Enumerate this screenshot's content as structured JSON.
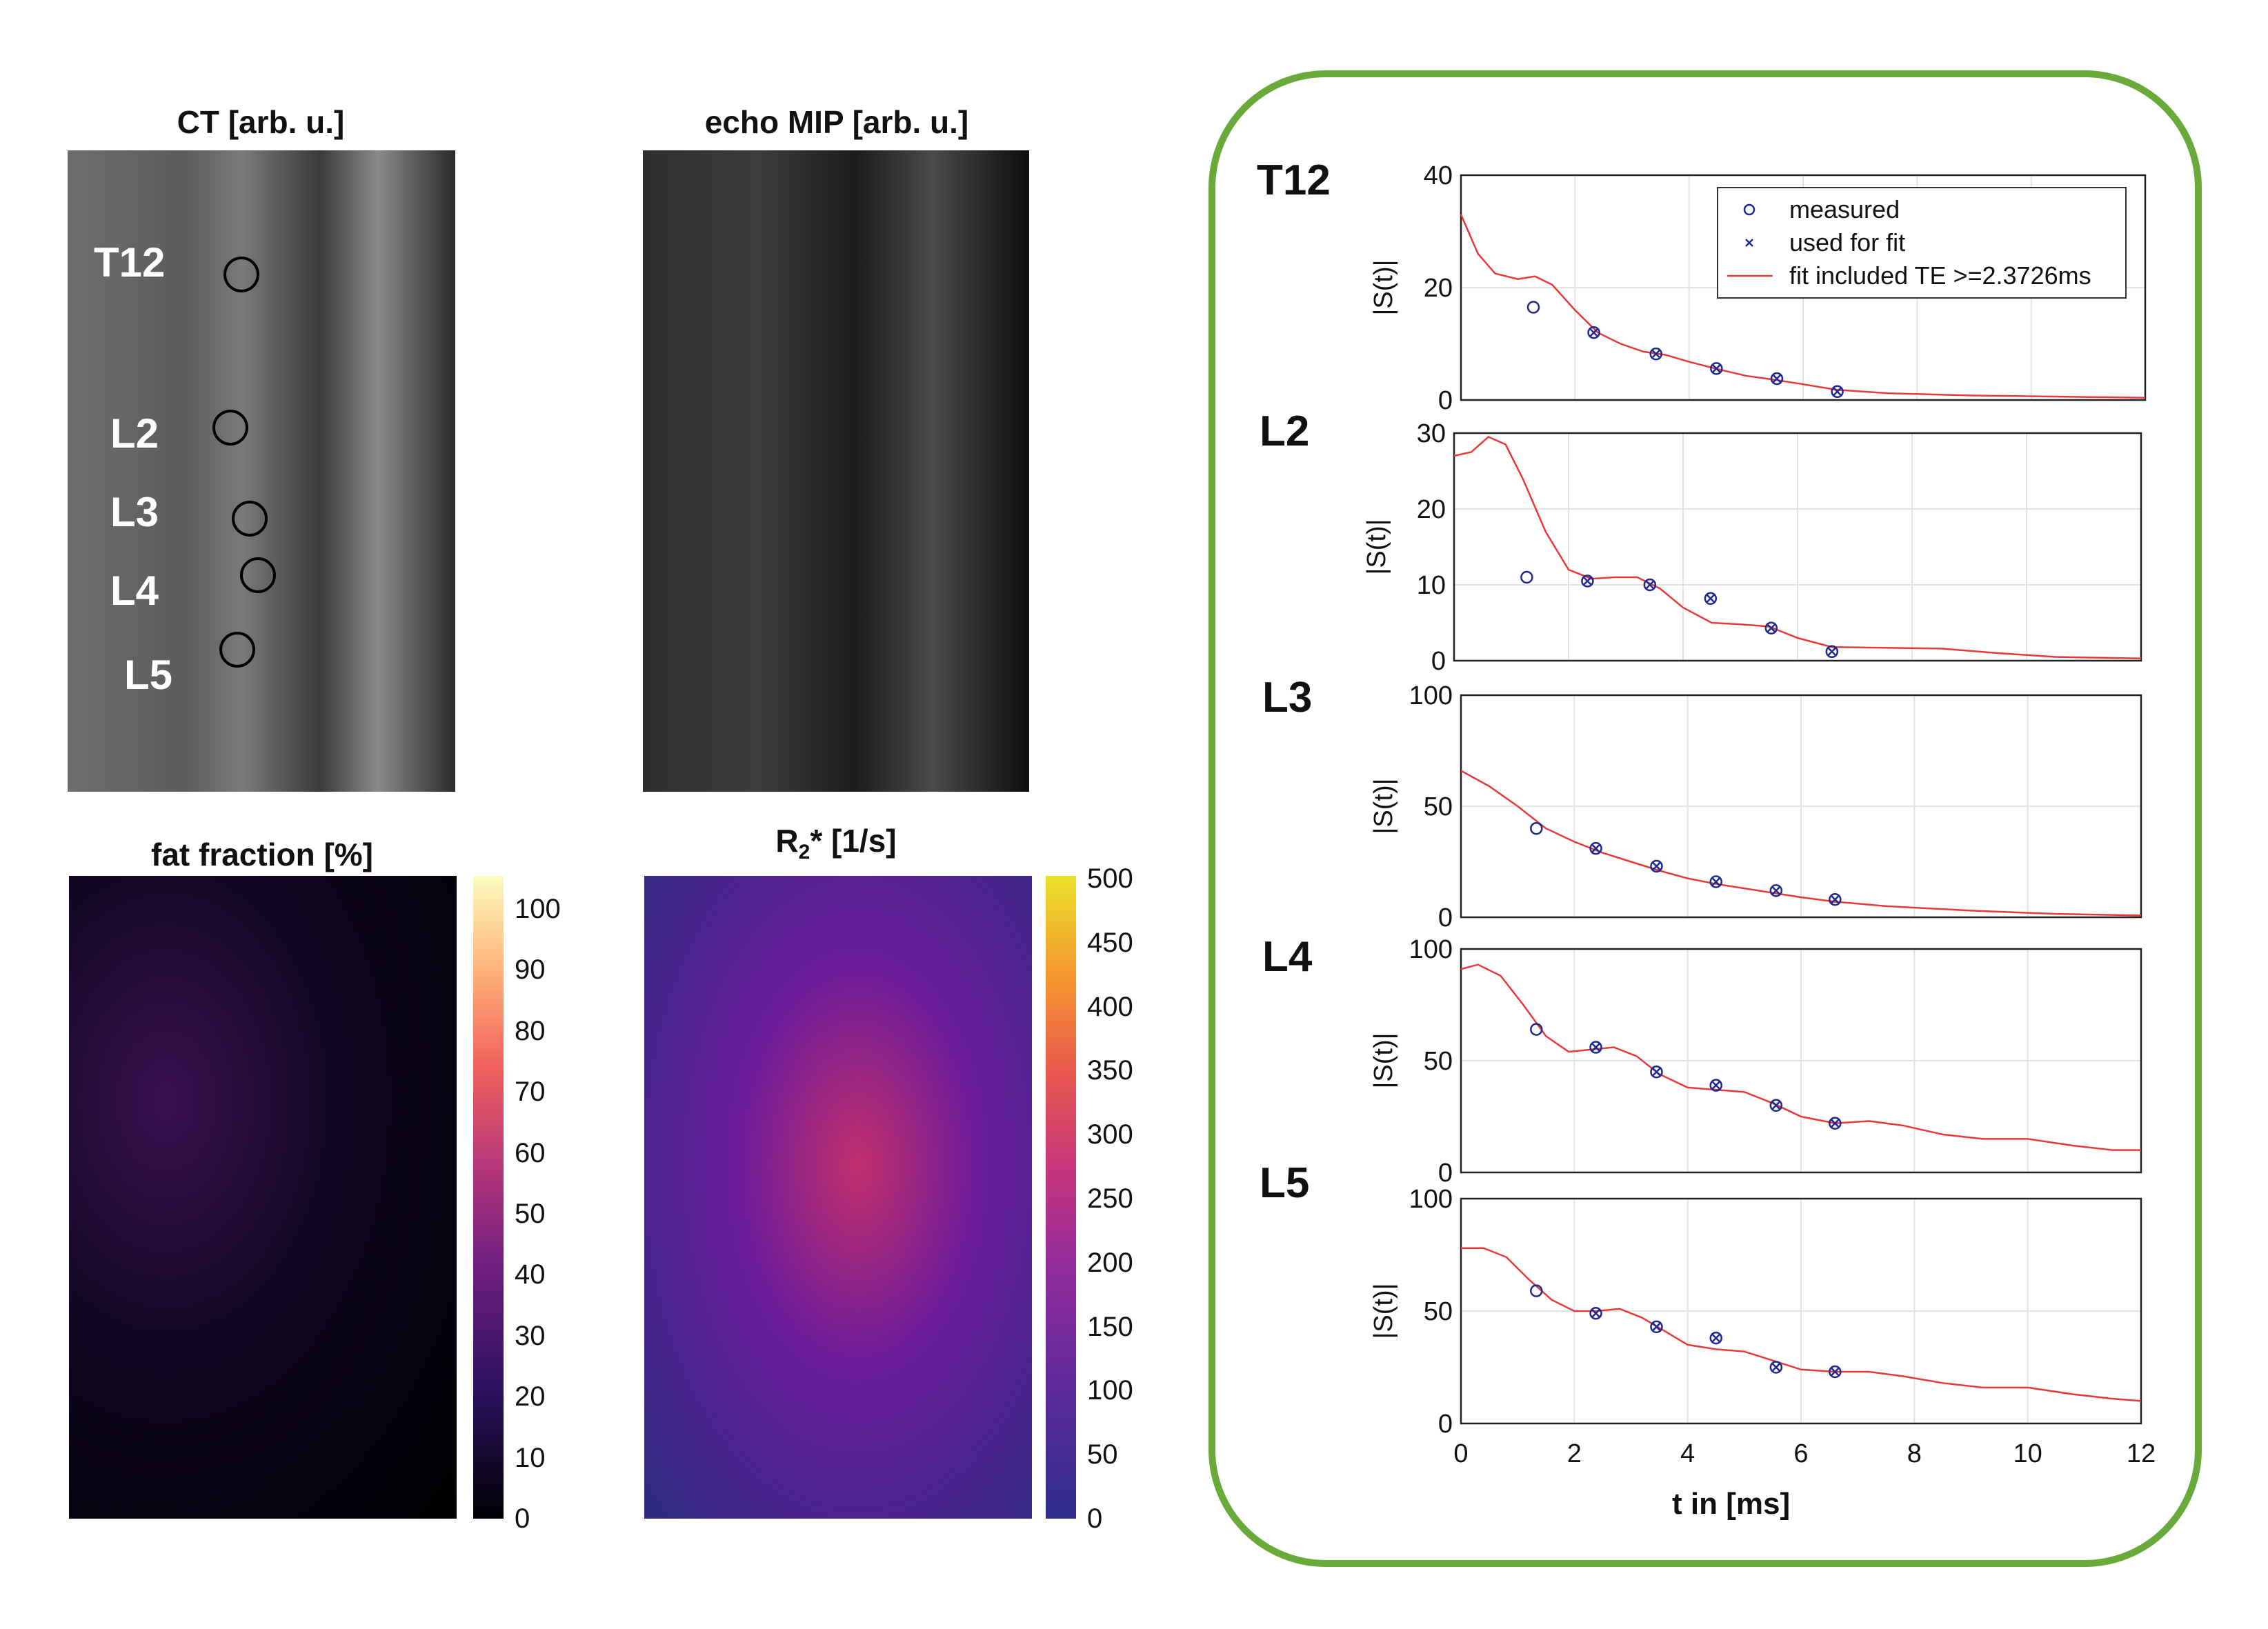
{
  "panels": {
    "ct_title": "CT [arb. u.]",
    "mip_title": "echo MIP [arb. u.]",
    "ff_title": "fat fraction [%]",
    "r2_title_main": "R",
    "r2_title_sub": "2",
    "r2_title_rest": "* [1/s]"
  },
  "vertebrae": [
    "T12",
    "L2",
    "L3",
    "L4",
    "L5"
  ],
  "colorbar_ff": {
    "ticks": [
      "100",
      "90",
      "80",
      "70",
      "60",
      "50",
      "40",
      "30",
      "20",
      "10",
      "0"
    ]
  },
  "colorbar_r2": {
    "ticks": [
      "500",
      "450",
      "400",
      "350",
      "300",
      "250",
      "200",
      "150",
      "100",
      "50",
      "0"
    ]
  },
  "colors": {
    "frame": "#6aaa3a",
    "fit": "#e8393a",
    "marker": "#1f2a8c"
  },
  "chart_data": {
    "type": "scatter",
    "xlabel": "t in [ms]",
    "ylabel": "|S(t)|",
    "xlim": [
      0,
      12
    ],
    "xticks": [
      "0",
      "2",
      "4",
      "6",
      "8",
      "10",
      "12"
    ],
    "legend": {
      "placement": "top-right",
      "entries": [
        "measured",
        "used for fit",
        "fit included TE >=2.3726ms"
      ]
    },
    "plots": [
      {
        "name": "T12",
        "ylim": [
          0,
          40
        ],
        "yticks": [
          "40",
          "20",
          "0"
        ],
        "measured": [
          [
            1.27,
            16.5
          ],
          [
            2.33,
            12
          ],
          [
            3.42,
            8.2
          ],
          [
            4.48,
            5.6
          ],
          [
            5.54,
            3.8
          ],
          [
            6.6,
            1.5
          ]
        ],
        "used_for_fit": [
          [
            2.33,
            12
          ],
          [
            3.42,
            8.2
          ],
          [
            4.48,
            5.6
          ],
          [
            5.54,
            3.8
          ],
          [
            6.6,
            1.5
          ]
        ],
        "fit": [
          [
            0,
            33
          ],
          [
            0.3,
            26
          ],
          [
            0.6,
            22.5
          ],
          [
            1,
            21.5
          ],
          [
            1.3,
            22
          ],
          [
            1.6,
            20.5
          ],
          [
            2,
            16
          ],
          [
            2.4,
            12
          ],
          [
            2.8,
            10
          ],
          [
            3.2,
            8.6
          ],
          [
            3.6,
            8
          ],
          [
            4,
            6.8
          ],
          [
            4.5,
            5.5
          ],
          [
            5,
            4.3
          ],
          [
            5.5,
            3.6
          ],
          [
            6,
            2.8
          ],
          [
            6.6,
            1.8
          ],
          [
            7.5,
            1.2
          ],
          [
            9,
            0.8
          ],
          [
            12,
            0.4
          ]
        ]
      },
      {
        "name": "L2",
        "ylim": [
          0,
          30
        ],
        "yticks": [
          "30",
          "20",
          "10",
          "0"
        ],
        "measured": [
          [
            1.27,
            11
          ],
          [
            2.33,
            10.5
          ],
          [
            3.42,
            10
          ],
          [
            4.48,
            8.2
          ],
          [
            5.54,
            4.3
          ],
          [
            6.6,
            1.2
          ]
        ],
        "used_for_fit": [
          [
            2.33,
            10.5
          ],
          [
            3.42,
            10
          ],
          [
            4.48,
            8.2
          ],
          [
            5.54,
            4.3
          ],
          [
            6.6,
            1.2
          ]
        ],
        "fit": [
          [
            0,
            27
          ],
          [
            0.3,
            27.5
          ],
          [
            0.6,
            29.5
          ],
          [
            0.9,
            28.5
          ],
          [
            1.2,
            24
          ],
          [
            1.6,
            17
          ],
          [
            2,
            12
          ],
          [
            2.4,
            10.8
          ],
          [
            2.8,
            11
          ],
          [
            3.2,
            11
          ],
          [
            3.6,
            9.5
          ],
          [
            4,
            7
          ],
          [
            4.5,
            5
          ],
          [
            5,
            4.8
          ],
          [
            5.5,
            4.5
          ],
          [
            6,
            3
          ],
          [
            6.6,
            1.8
          ],
          [
            7.5,
            1.7
          ],
          [
            8.5,
            1.6
          ],
          [
            9.5,
            1
          ],
          [
            10.5,
            0.5
          ],
          [
            12,
            0.3
          ]
        ]
      },
      {
        "name": "L3",
        "ylim": [
          0,
          100
        ],
        "yticks": [
          "100",
          "50",
          "0"
        ],
        "measured": [
          [
            1.33,
            40
          ],
          [
            2.38,
            31
          ],
          [
            3.45,
            23
          ],
          [
            4.5,
            16
          ],
          [
            5.56,
            12
          ],
          [
            6.6,
            8
          ]
        ],
        "used_for_fit": [
          [
            2.38,
            31
          ],
          [
            3.45,
            23
          ],
          [
            4.5,
            16
          ],
          [
            5.56,
            12
          ],
          [
            6.6,
            8
          ]
        ],
        "fit": [
          [
            0,
            66
          ],
          [
            0.5,
            59
          ],
          [
            1,
            50
          ],
          [
            1.5,
            40
          ],
          [
            2,
            34
          ],
          [
            2.5,
            29
          ],
          [
            3,
            25
          ],
          [
            3.5,
            21
          ],
          [
            4,
            17.5
          ],
          [
            4.5,
            15
          ],
          [
            5,
            13
          ],
          [
            5.5,
            11
          ],
          [
            6,
            9
          ],
          [
            6.6,
            7
          ],
          [
            7.5,
            5
          ],
          [
            9,
            3
          ],
          [
            10.5,
            1.5
          ],
          [
            12,
            0.8
          ]
        ]
      },
      {
        "name": "L4",
        "ylim": [
          0,
          100
        ],
        "yticks": [
          "100",
          "50",
          "0"
        ],
        "measured": [
          [
            1.33,
            64
          ],
          [
            2.38,
            56
          ],
          [
            3.45,
            45
          ],
          [
            4.5,
            39
          ],
          [
            5.56,
            30
          ],
          [
            6.6,
            22
          ]
        ],
        "used_for_fit": [
          [
            2.38,
            56
          ],
          [
            3.45,
            45
          ],
          [
            4.5,
            39
          ],
          [
            5.56,
            30
          ],
          [
            6.6,
            22
          ]
        ],
        "fit": [
          [
            0,
            91
          ],
          [
            0.3,
            93
          ],
          [
            0.7,
            88
          ],
          [
            1.1,
            75
          ],
          [
            1.5,
            61
          ],
          [
            1.9,
            54
          ],
          [
            2.3,
            55
          ],
          [
            2.7,
            56
          ],
          [
            3.1,
            52
          ],
          [
            3.5,
            44
          ],
          [
            4,
            38
          ],
          [
            4.5,
            37
          ],
          [
            5,
            36
          ],
          [
            5.5,
            31
          ],
          [
            6,
            25
          ],
          [
            6.6,
            22
          ],
          [
            7.2,
            23
          ],
          [
            7.8,
            21
          ],
          [
            8.5,
            17
          ],
          [
            9.2,
            15
          ],
          [
            10,
            15
          ],
          [
            10.8,
            12
          ],
          [
            11.5,
            10
          ],
          [
            12,
            10
          ]
        ]
      },
      {
        "name": "L5",
        "ylim": [
          0,
          100
        ],
        "yticks": [
          "100",
          "50",
          "0"
        ],
        "measured": [
          [
            1.33,
            59
          ],
          [
            2.38,
            49
          ],
          [
            3.45,
            43
          ],
          [
            4.5,
            38
          ],
          [
            5.56,
            25
          ],
          [
            6.6,
            23
          ]
        ],
        "used_for_fit": [
          [
            2.38,
            49
          ],
          [
            3.45,
            43
          ],
          [
            4.5,
            38
          ],
          [
            5.56,
            25
          ],
          [
            6.6,
            23
          ]
        ],
        "fit": [
          [
            0,
            78
          ],
          [
            0.4,
            78
          ],
          [
            0.8,
            74
          ],
          [
            1.2,
            64
          ],
          [
            1.6,
            55
          ],
          [
            2,
            50
          ],
          [
            2.4,
            50
          ],
          [
            2.8,
            51
          ],
          [
            3.2,
            47
          ],
          [
            3.6,
            41
          ],
          [
            4,
            35
          ],
          [
            4.5,
            33
          ],
          [
            5,
            32
          ],
          [
            5.5,
            28
          ],
          [
            6,
            24
          ],
          [
            6.6,
            23
          ],
          [
            7.2,
            23
          ],
          [
            7.8,
            21
          ],
          [
            8.5,
            18
          ],
          [
            9.2,
            16
          ],
          [
            10,
            16
          ],
          [
            10.8,
            13
          ],
          [
            11.5,
            11
          ],
          [
            12,
            10
          ]
        ]
      }
    ]
  }
}
